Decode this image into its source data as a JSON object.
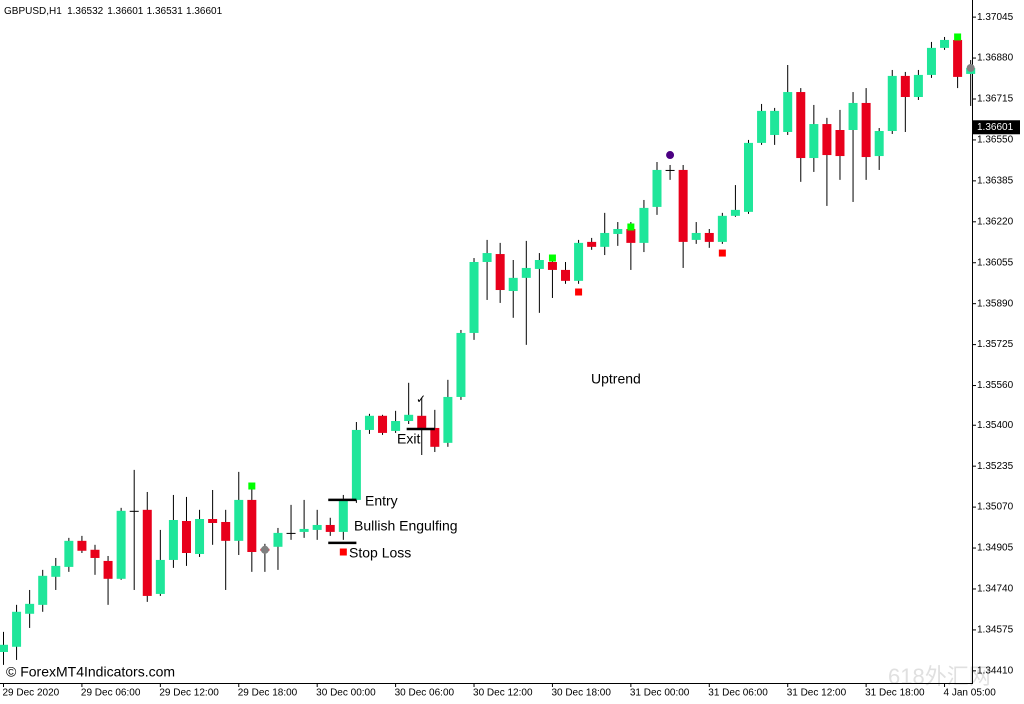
{
  "chart_data": {
    "type": "candlestick",
    "header": {
      "symbol": "GBPUSD,H1",
      "ohlc": [
        1.36532,
        1.36601,
        1.36531,
        1.36601
      ]
    },
    "categories": [
      "29 Dec 2020",
      null,
      null,
      null,
      null,
      null,
      "29 Dec 06:00",
      null,
      null,
      null,
      null,
      null,
      "29 Dec 12:00",
      null,
      null,
      null,
      null,
      null,
      "29 Dec 18:00",
      null,
      null,
      null,
      null,
      null,
      "30 Dec 00:00",
      null,
      null,
      null,
      null,
      null,
      "30 Dec 06:00",
      null,
      null,
      null,
      null,
      null,
      "30 Dec 12:00",
      null,
      null,
      null,
      null,
      null,
      "30 Dec 18:00",
      null,
      null,
      null,
      null,
      null,
      "31 Dec 00:00",
      null,
      null,
      null,
      null,
      null,
      "31 Dec 06:00",
      null,
      null,
      null,
      null,
      null,
      "31 Dec 12:00",
      null,
      null,
      null,
      null,
      null,
      "31 Dec 18:00",
      null,
      null,
      null,
      null,
      null,
      "4 Jan 05:00",
      null,
      null
    ],
    "open": [
      1.34486,
      1.34507,
      1.3464,
      1.34676,
      1.34789,
      1.34829,
      1.34934,
      1.34898,
      1.34853,
      1.34781,
      1.35055,
      1.35059,
      1.3472,
      1.34857,
      1.35014,
      1.34881,
      1.35022,
      1.3501,
      1.34934,
      1.35099,
      1.34902,
      1.3491,
      1.34966,
      1.3497,
      1.34978,
      1.34998,
      1.3497,
      1.35099,
      1.35381,
      1.35438,
      1.35377,
      1.35417,
      1.35438,
      1.35389,
      1.35329,
      1.35514,
      1.35772,
      1.36058,
      1.3609,
      1.35941,
      1.35994,
      1.3603,
      1.36058,
      1.36026,
      1.35982,
      1.36139,
      1.36119,
      1.36171,
      1.36191,
      1.36135,
      1.3628,
      1.36429,
      1.36429,
      1.36147,
      1.36175,
      1.36139,
      1.36244,
      1.3626,
      1.36538,
      1.3657,
      1.36582,
      1.36743,
      1.36477,
      1.36614,
      1.3659,
      1.3659,
      1.36699,
      1.36485,
      1.36586,
      1.36808,
      1.36723,
      1.36812,
      1.36921,
      1.36953,
      1.36816
    ],
    "high": [
      1.34567,
      1.34676,
      1.34736,
      1.34817,
      1.34865,
      1.34946,
      1.34954,
      1.34918,
      1.34873,
      1.35067,
      1.3522,
      1.35131,
      1.34978,
      1.35119,
      1.35111,
      1.35059,
      1.35139,
      1.35059,
      1.35212,
      1.35159,
      1.34922,
      1.34986,
      1.35079,
      1.35099,
      1.35059,
      1.35027,
      1.35119,
      1.35413,
      1.35446,
      1.35442,
      1.35458,
      1.35571,
      1.3551,
      1.35462,
      1.35583,
      1.35784,
      1.36074,
      1.36147,
      1.36135,
      1.36066,
      1.36143,
      1.36094,
      1.36086,
      1.36058,
      1.36147,
      1.36155,
      1.36256,
      1.36219,
      1.36219,
      1.36308,
      1.36461,
      1.36449,
      1.36449,
      1.36219,
      1.36191,
      1.36256,
      1.36368,
      1.3655,
      1.36695,
      1.36679,
      1.36852,
      1.36759,
      1.36691,
      1.36639,
      1.36671,
      1.36743,
      1.36759,
      1.36598,
      1.36832,
      1.36824,
      1.36832,
      1.36945,
      1.36965,
      1.36969,
      1.36872
    ],
    "low": [
      1.34434,
      1.34454,
      1.34583,
      1.34648,
      1.34736,
      1.34809,
      1.34885,
      1.34797,
      1.34676,
      1.34777,
      1.34736,
      1.34688,
      1.34712,
      1.34825,
      1.34833,
      1.34869,
      1.34918,
      1.34736,
      1.34877,
      1.34809,
      1.34809,
      1.34817,
      1.34938,
      1.34946,
      1.34938,
      1.34954,
      1.34938,
      1.35087,
      1.35365,
      1.35361,
      1.35369,
      1.35405,
      1.3528,
      1.35292,
      1.35313,
      1.35502,
      1.35744,
      1.35905,
      1.35893,
      1.35833,
      1.35724,
      1.35853,
      1.35913,
      1.3597,
      1.3597,
      1.36107,
      1.36086,
      1.36123,
      1.36026,
      1.36098,
      1.36248,
      1.36389,
      1.36034,
      1.36131,
      1.36115,
      1.36131,
      1.3624,
      1.36252,
      1.3653,
      1.3653,
      1.3657,
      1.36381,
      1.36421,
      1.36284,
      1.36389,
      1.363,
      1.36389,
      1.36429,
      1.36574,
      1.36582,
      1.36711,
      1.368,
      1.36913,
      1.36759,
      1.36687
    ],
    "close": [
      1.34515,
      1.34648,
      1.3468,
      1.34793,
      1.34833,
      1.34934,
      1.34894,
      1.34865,
      1.34781,
      1.35055,
      1.35055,
      1.34712,
      1.34857,
      1.35018,
      1.34885,
      1.35022,
      1.35006,
      1.34934,
      1.35099,
      1.34889,
      1.34894,
      1.34966,
      1.34966,
      1.34982,
      1.34998,
      1.3497,
      1.35099,
      1.35381,
      1.35438,
      1.35369,
      1.35417,
      1.35442,
      1.35389,
      1.35313,
      1.35514,
      1.35772,
      1.36058,
      1.36094,
      1.35945,
      1.35994,
      1.36034,
      1.36066,
      1.36026,
      1.35982,
      1.36135,
      1.36119,
      1.36175,
      1.36191,
      1.36135,
      1.36276,
      1.36429,
      1.36429,
      1.36139,
      1.36175,
      1.36139,
      1.36244,
      1.36268,
      1.36538,
      1.36667,
      1.36667,
      1.36743,
      1.36477,
      1.36614,
      1.36489,
      1.36485,
      1.36699,
      1.36481,
      1.36586,
      1.36808,
      1.36723,
      1.36812,
      1.36921,
      1.36953,
      1.36804,
      1.3684
    ],
    "up_color": "#1fe69a",
    "down_color": "#e8001b",
    "doji_color": "#000000",
    "wick_color": "#000000",
    "ylim": [
      1.34361,
      1.37114
    ],
    "yticks": [
      1.37045,
      {
        "value": 1.3688,
        "label": "1.36880"
      },
      1.36715,
      {
        "value": 1.3655,
        "label": "1.36550"
      },
      1.36385,
      {
        "value": 1.3622,
        "label": "1.36220"
      },
      1.36055,
      {
        "value": 1.3589,
        "label": "1.35890"
      },
      1.35725,
      {
        "value": 1.3556,
        "label": "1.35560"
      },
      {
        "value": 1.354,
        "label": "1.35400"
      },
      1.35235,
      {
        "value": 1.3507,
        "label": "1.35070"
      },
      1.34905,
      {
        "value": 1.3474,
        "label": "1.34740"
      },
      1.34575,
      {
        "value": 1.3441,
        "label": "1.34410"
      }
    ],
    "last_price": 1.36601,
    "signals": [
      {
        "color": "#00ff00",
        "shape": "square",
        "values": [
          null,
          null,
          null,
          null,
          null,
          null,
          null,
          null,
          null,
          null,
          null,
          null,
          null,
          null,
          null,
          null,
          null,
          null,
          null,
          1.35155,
          null,
          null,
          null,
          null,
          null,
          null,
          null,
          null,
          null,
          null,
          null,
          null,
          null,
          null,
          null,
          null,
          null,
          null,
          null,
          null,
          null,
          null,
          1.36074,
          null,
          null,
          null,
          null,
          null,
          1.36199,
          null,
          null,
          null,
          null,
          null,
          null,
          null,
          null,
          null,
          null,
          null,
          null,
          null,
          null,
          null,
          null,
          null,
          null,
          null,
          null,
          null,
          null,
          null,
          null,
          1.36965,
          null
        ]
      },
      {
        "color": "#ff0000",
        "shape": "square",
        "values": [
          null,
          null,
          null,
          null,
          null,
          null,
          null,
          null,
          null,
          null,
          null,
          null,
          null,
          null,
          null,
          null,
          null,
          null,
          null,
          null,
          null,
          null,
          null,
          null,
          null,
          null,
          1.34889,
          null,
          null,
          null,
          null,
          null,
          null,
          null,
          null,
          null,
          null,
          null,
          null,
          null,
          null,
          null,
          null,
          null,
          1.35937,
          null,
          null,
          null,
          null,
          null,
          null,
          null,
          null,
          null,
          null,
          1.36094,
          null,
          null,
          null,
          null,
          null,
          null,
          null,
          null,
          null,
          null,
          null,
          null,
          null,
          null,
          null,
          null,
          null,
          null,
          null
        ]
      },
      {
        "color": "#808080",
        "shape": "circle",
        "values": [
          null,
          null,
          null,
          null,
          null,
          null,
          null,
          null,
          null,
          null,
          null,
          null,
          null,
          null,
          null,
          null,
          null,
          null,
          null,
          null,
          1.34898,
          null,
          null,
          null,
          null,
          null,
          null,
          null,
          null,
          null,
          null,
          null,
          null,
          null,
          null,
          null,
          null,
          null,
          null,
          null,
          null,
          null,
          null,
          null,
          null,
          null,
          null,
          null,
          null,
          null,
          null,
          null,
          null,
          null,
          null,
          null,
          null,
          null,
          null,
          null,
          null,
          null,
          null,
          null,
          null,
          null,
          null,
          null,
          null,
          null,
          null,
          null,
          null,
          null,
          1.3684
        ]
      },
      {
        "color": "#4b0082",
        "shape": "circle",
        "values": [
          null,
          null,
          null,
          null,
          null,
          null,
          null,
          null,
          null,
          null,
          null,
          null,
          null,
          null,
          null,
          null,
          null,
          null,
          null,
          null,
          null,
          null,
          null,
          null,
          null,
          null,
          null,
          null,
          null,
          null,
          null,
          null,
          null,
          null,
          null,
          null,
          null,
          null,
          null,
          null,
          null,
          null,
          null,
          null,
          null,
          null,
          null,
          null,
          null,
          null,
          null,
          1.36489,
          null,
          null,
          null,
          null,
          null,
          null,
          null,
          null,
          null,
          null,
          null,
          null,
          null,
          null,
          null,
          null,
          null,
          null,
          null,
          null,
          null,
          null,
          null
        ]
      }
    ],
    "levels": {
      "entry": 1.35099,
      "stop_loss": 1.34926,
      "exit": 1.35385
    },
    "annotations": {
      "entry": "Entry",
      "pattern": "Bullish Engulfing",
      "stop_loss": "Stop Loss",
      "exit": "Exit",
      "trend": "Uptrend",
      "check": "✓"
    },
    "copyright": "© ForexMT4Indicators.com",
    "watermark": "618外汇网"
  }
}
